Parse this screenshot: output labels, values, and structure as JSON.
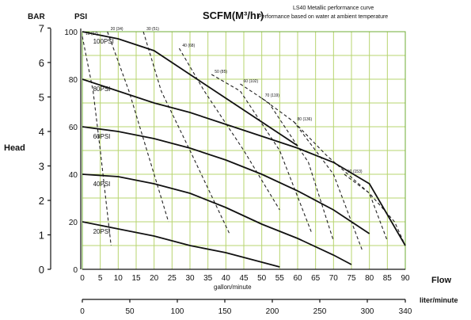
{
  "chart_data": {
    "type": "line",
    "title": "SCFM(M³/hr)",
    "subtitle_lines": [
      "LS40 Metallic performance curve",
      "Performance based on water at ambient temperature"
    ],
    "ylabel": "Head",
    "xlabel": "gallon/minute",
    "flow_label": "Flow",
    "x2label": "liter/minute",
    "bar_label": "BAR",
    "psi_label": "PSI",
    "xlim": [
      0,
      90
    ],
    "ylim": [
      0,
      100
    ],
    "x_ticks": [
      0,
      5,
      10,
      15,
      20,
      25,
      30,
      35,
      40,
      45,
      50,
      55,
      60,
      65,
      70,
      75,
      80,
      85,
      90
    ],
    "psi_ticks": [
      0,
      20,
      40,
      60,
      80,
      100
    ],
    "bar_ticks": [
      0,
      1,
      2,
      3,
      4,
      5,
      6,
      7
    ],
    "lpm_ticks": [
      0,
      50,
      100,
      150,
      200,
      250,
      300,
      340
    ],
    "grid": true,
    "series": [
      {
        "name": "100PSI",
        "x": [
          0,
          10,
          20,
          30,
          40,
          50,
          60
        ],
        "y": [
          100,
          97,
          92,
          82,
          72,
          62,
          52
        ]
      },
      {
        "name": "80PSI",
        "x": [
          0,
          10,
          20,
          30,
          40,
          50,
          60,
          70,
          80,
          90
        ],
        "y": [
          80,
          75,
          70,
          66,
          61,
          56,
          51,
          45,
          36,
          10
        ]
      },
      {
        "name": "60PSI",
        "x": [
          0,
          10,
          20,
          30,
          40,
          50,
          60,
          70,
          80
        ],
        "y": [
          60,
          58,
          55,
          51,
          46,
          40,
          33,
          25,
          15
        ]
      },
      {
        "name": "40PSI",
        "x": [
          0,
          10,
          20,
          30,
          40,
          50,
          60,
          70,
          75
        ],
        "y": [
          40,
          39,
          36,
          32,
          26,
          19,
          13,
          6,
          2
        ]
      },
      {
        "name": "20PSI",
        "x": [
          0,
          10,
          20,
          30,
          40,
          50,
          55
        ],
        "y": [
          20,
          17,
          14,
          10,
          7,
          3,
          1
        ]
      }
    ],
    "air_lines": [
      {
        "label": "10 (17)",
        "x": [
          0,
          3,
          5,
          8
        ],
        "y": [
          98,
          75,
          50,
          10
        ]
      },
      {
        "label": "20 (34)",
        "x": [
          7,
          13,
          18,
          24
        ],
        "y": [
          100,
          75,
          50,
          20
        ]
      },
      {
        "label": "30 (51)",
        "x": [
          17,
          22,
          30,
          41
        ],
        "y": [
          100,
          75,
          50,
          15
        ]
      },
      {
        "label": "40 (68)",
        "x": [
          27,
          34,
          45,
          55
        ],
        "y": [
          93,
          75,
          50,
          25
        ]
      },
      {
        "label": "50 (85)",
        "x": [
          36,
          44,
          55,
          64
        ],
        "y": [
          82,
          75,
          50,
          15
        ]
      },
      {
        "label": "60 (102)",
        "x": [
          44,
          52,
          63,
          70
        ],
        "y": [
          78,
          70,
          45,
          12
        ]
      },
      {
        "label": "70 (119)",
        "x": [
          50,
          59,
          70,
          78
        ],
        "y": [
          72,
          62,
          40,
          8
        ]
      },
      {
        "label": "80 (136)",
        "x": [
          59,
          68,
          80,
          85
        ],
        "y": [
          62,
          48,
          32,
          12
        ]
      },
      {
        "label": "90 (153)",
        "x": [
          73,
          80,
          87,
          90
        ],
        "y": [
          40,
          32,
          20,
          10
        ]
      }
    ]
  }
}
